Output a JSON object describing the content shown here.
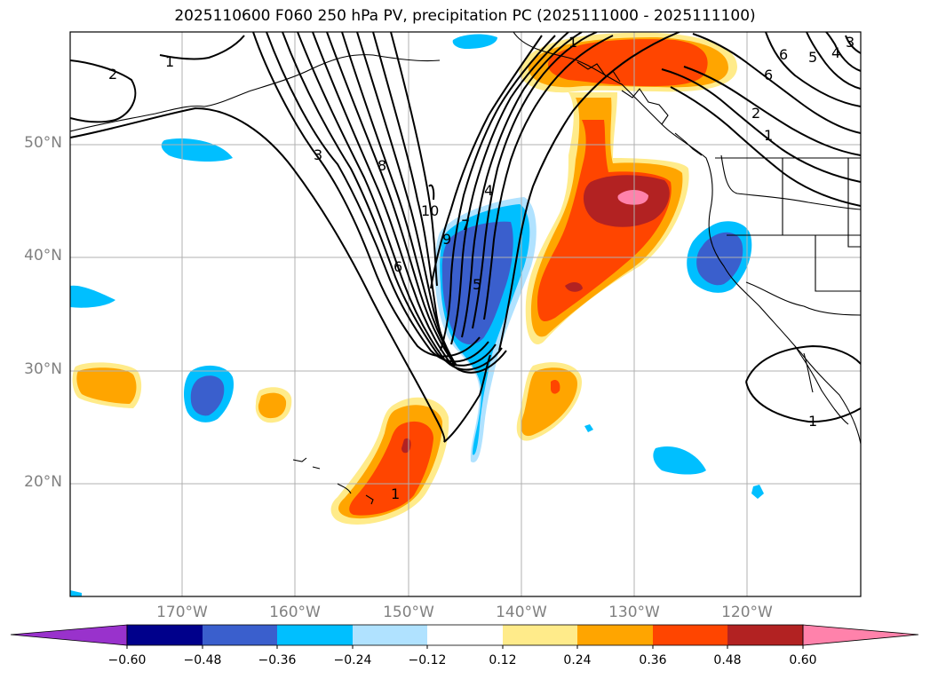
{
  "title": "2025110600 F060 250 hPa PV, precipitation PC (2025111000 - 2025111100)",
  "lat_labels": [
    "50°N",
    "40°N",
    "30°N",
    "20°N"
  ],
  "lon_labels": [
    "170°W",
    "160°W",
    "150°W",
    "140°W",
    "130°W",
    "120°W"
  ],
  "colorbar": {
    "ticks": [
      "−0.60",
      "−0.48",
      "−0.36",
      "−0.24",
      "−0.12",
      "0.12",
      "0.24",
      "0.36",
      "0.48",
      "0.60"
    ],
    "colors": [
      "#9932cc",
      "#00008b",
      "#3a5fcd",
      "#00bfff",
      "#b0e2ff",
      "#ffffff",
      "#ffeb8a",
      "#ffa500",
      "#ff4500",
      "#b22222",
      "#ff82ab"
    ]
  },
  "pv_contour_labels": [
    "1",
    "2",
    "3",
    "8",
    "10",
    "9",
    "7",
    "4",
    "6",
    "5",
    "1",
    "2",
    "6",
    "5",
    "4",
    "3",
    "6",
    "1",
    "1",
    "1"
  ],
  "colors": {
    "neg_strong": "#3a5fcd",
    "neg_light": "#00bfff",
    "neg_pale": "#b0e2ff",
    "pos_pale": "#ffeb8a",
    "pos_orange": "#ffa500",
    "pos_red": "#ff4500",
    "pos_dark": "#b22222",
    "pos_pink": "#ff82ab"
  }
}
